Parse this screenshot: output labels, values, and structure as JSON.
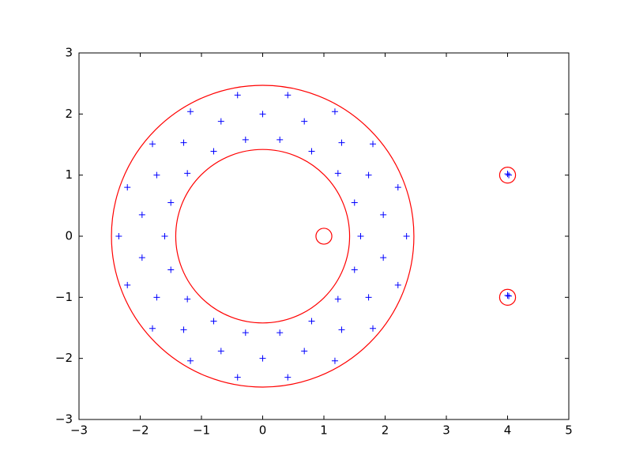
{
  "chart_data": {
    "type": "scatter",
    "x": [
      1.6,
      1.5,
      1.23,
      0.8,
      0.28,
      -0.28,
      -0.8,
      -1.23,
      -1.5,
      -1.6,
      -1.5,
      -1.23,
      -0.8,
      -0.28,
      0.28,
      0.8,
      1.23,
      1.5,
      2.35,
      2.21,
      1.8,
      1.18,
      0.41,
      -0.41,
      -1.18,
      -1.8,
      -2.21,
      -2.35,
      -2.21,
      -1.8,
      -1.18,
      -0.41,
      0.41,
      1.18,
      1.8,
      2.21,
      1.97,
      1.73,
      1.29,
      0.68,
      0,
      -0.68,
      -1.29,
      -1.73,
      -1.97,
      -1.97,
      -1.73,
      -1.29,
      -0.68,
      0,
      0.68,
      1.29,
      1.73,
      1.97,
      4.0,
      4.02,
      4.02,
      4.0
    ],
    "y": [
      0,
      0.55,
      1.03,
      1.39,
      1.58,
      1.58,
      1.39,
      1.03,
      0.55,
      0,
      -0.55,
      -1.03,
      -1.39,
      -1.58,
      -1.58,
      -1.39,
      -1.03,
      -0.55,
      0,
      0.8,
      1.51,
      2.04,
      2.31,
      2.31,
      2.04,
      1.51,
      0.8,
      0,
      -0.8,
      -1.51,
      -2.04,
      -2.31,
      -2.31,
      -2.04,
      -1.51,
      -0.8,
      0.35,
      1.0,
      1.53,
      1.88,
      2.0,
      1.88,
      1.53,
      1.0,
      0.35,
      -0.35,
      -1.0,
      -1.53,
      -1.88,
      -2.0,
      -1.88,
      -1.53,
      -1.0,
      -0.35,
      1.02,
      1.0,
      -0.98,
      -0.97
    ],
    "color": "#0000ff",
    "circles": [
      {
        "cx": 0,
        "cy": 0,
        "r": 2.47
      },
      {
        "cx": 0,
        "cy": 0,
        "r": 1.42
      },
      {
        "cx": 1,
        "cy": 0,
        "r": 0.13
      },
      {
        "cx": 4,
        "cy": 1,
        "r": 0.13
      },
      {
        "cx": 4,
        "cy": -1,
        "r": 0.13
      }
    ],
    "circle_color": "#ff0000",
    "xlim": [
      -3,
      5
    ],
    "ylim": [
      -3,
      3
    ],
    "xticks": [
      {
        "value": -3,
        "label": "−3"
      },
      {
        "value": -2,
        "label": "−2"
      },
      {
        "value": -1,
        "label": "−1"
      },
      0,
      1,
      2,
      3,
      4,
      5
    ],
    "yticks": [
      {
        "value": -3,
        "label": "−3"
      },
      {
        "value": -2,
        "label": "−2"
      },
      {
        "value": -1,
        "label": "−1"
      },
      0,
      1,
      2,
      3
    ]
  }
}
